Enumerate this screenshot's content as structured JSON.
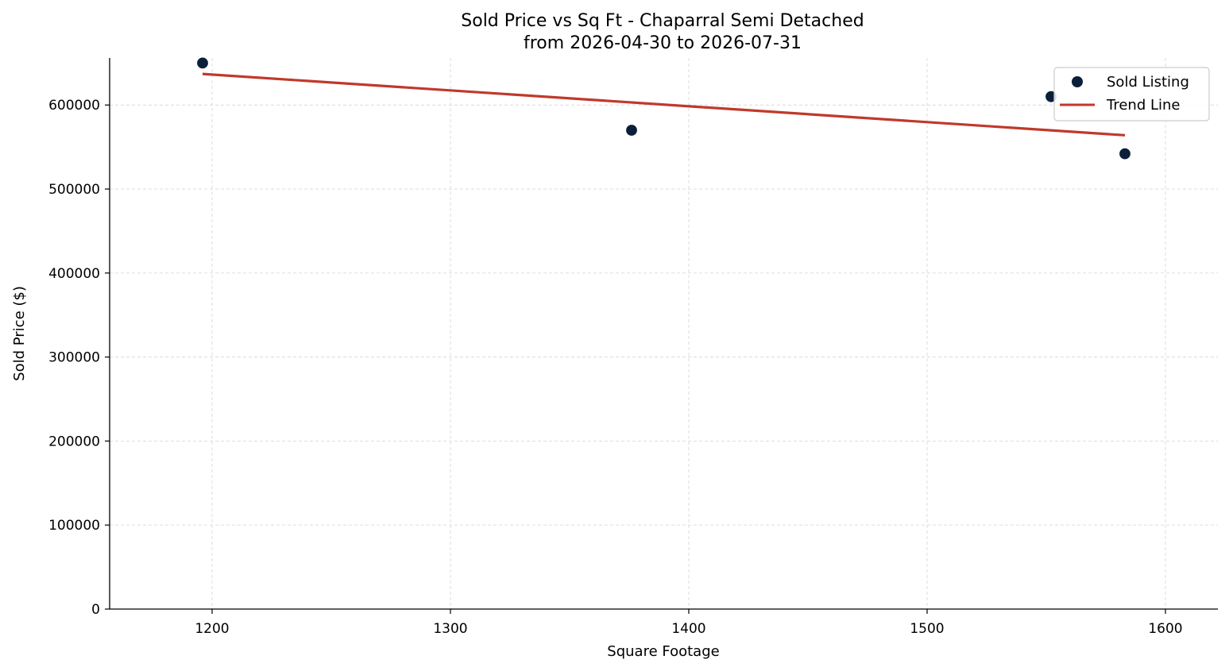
{
  "chart_data": {
    "type": "scatter",
    "title": "Sold Price vs Sq Ft - Chaparral Semi Detached",
    "subtitle": "from 2026-04-30 to 2026-07-31",
    "xlabel": "Square Footage",
    "ylabel": "Sold Price ($)",
    "xlim": [
      1157,
      1622
    ],
    "ylim": [
      0,
      656000
    ],
    "x_ticks": [
      1200,
      1300,
      1400,
      1500,
      1600
    ],
    "y_ticks": [
      0,
      100000,
      200000,
      300000,
      400000,
      500000,
      600000
    ],
    "grid": true,
    "legend_position": "top-right",
    "series": [
      {
        "name": "Sold Listing",
        "kind": "scatter",
        "color": "#0b1f3a",
        "points": [
          {
            "x": 1196,
            "y": 650000
          },
          {
            "x": 1376,
            "y": 570000
          },
          {
            "x": 1552,
            "y": 610000
          },
          {
            "x": 1583,
            "y": 542000
          }
        ]
      },
      {
        "name": "Trend Line",
        "kind": "line",
        "color": "#c0392b",
        "points": [
          {
            "x": 1196,
            "y": 637000
          },
          {
            "x": 1583,
            "y": 564000
          }
        ]
      }
    ]
  }
}
